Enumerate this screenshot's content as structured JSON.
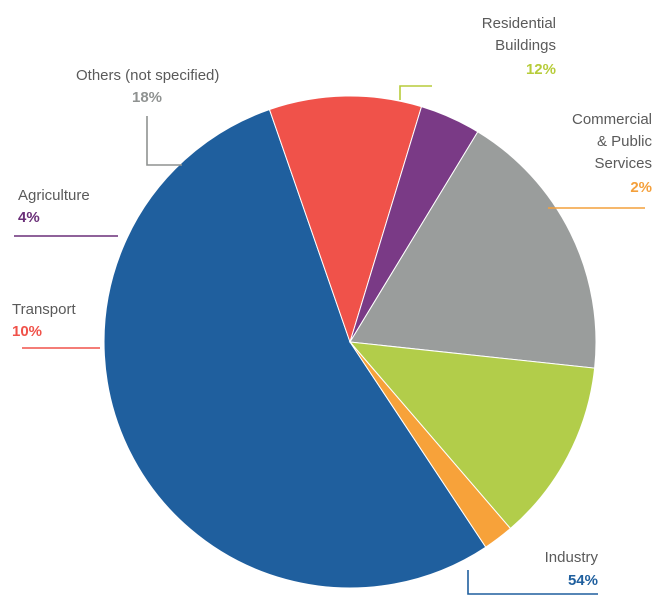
{
  "chart_data": {
    "type": "pie",
    "title": "",
    "unit": "%",
    "slices": [
      {
        "name": "Industry",
        "value": 54,
        "label": "54%",
        "color": "#1f5f9e"
      },
      {
        "name": "Transport",
        "value": 10,
        "label": "10%",
        "color": "#f0524a"
      },
      {
        "name": "Agriculture",
        "value": 4,
        "label": "4%",
        "color": "#7a3a86"
      },
      {
        "name": "Others (not specified)",
        "value": 18,
        "label": "18%",
        "color": "#9a9d9c"
      },
      {
        "name": "Residential Buildings",
        "value": 12,
        "label": "12%",
        "color": "#b2cd4a"
      },
      {
        "name": "Commercial & Public Services",
        "value": 2,
        "label": "2%",
        "color": "#f7a23a"
      }
    ],
    "label_colors": {
      "Industry": "#1f5f9e",
      "Transport": "#f0524a",
      "Agriculture": "#6a2f78",
      "Others (not specified)": "#8f9291",
      "Residential Buildings": "#b7cc3a",
      "Commercial & Public Services": "#f4a03c"
    },
    "legend": "none"
  }
}
